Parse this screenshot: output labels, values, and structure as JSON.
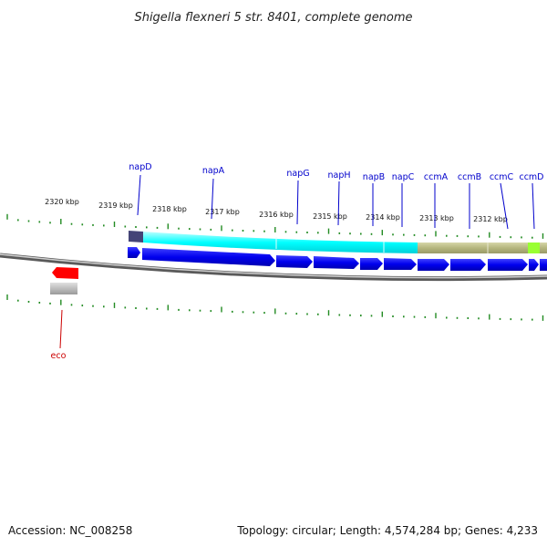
{
  "title": "Shigella flexneri 5 str. 8401, complete genome",
  "footer": {
    "accession": "Accession: NC_008258",
    "topology": "Topology: circular; Length: 4,574,284 bp; Genes: 4,233"
  },
  "colors": {
    "gene_label": "#0000cc",
    "eco_label": "#cc0000",
    "tick": "#228b22",
    "blue_gene": "#0000ee",
    "cyan_band": "#00ffff",
    "olive_band": "#b5b67e",
    "lime_block": "#99ff33",
    "dark_block": "#444477",
    "red_feature": "#ff0000",
    "gray_feature": "#bbbbbb",
    "backbone": "#888888"
  },
  "kbp_labels": [
    "2320 kbp",
    "2319 kbp",
    "2318 kbp",
    "2317 kbp",
    "2316 kbp",
    "2315 kbp",
    "2314 kbp",
    "2313 kbp",
    "2312 kbp"
  ],
  "gene_labels": [
    "napD",
    "napA",
    "napG",
    "napH",
    "napB",
    "napC",
    "ccmA",
    "ccmB",
    "ccmC",
    "ccmD"
  ],
  "feature_labels": [
    "eco"
  ]
}
